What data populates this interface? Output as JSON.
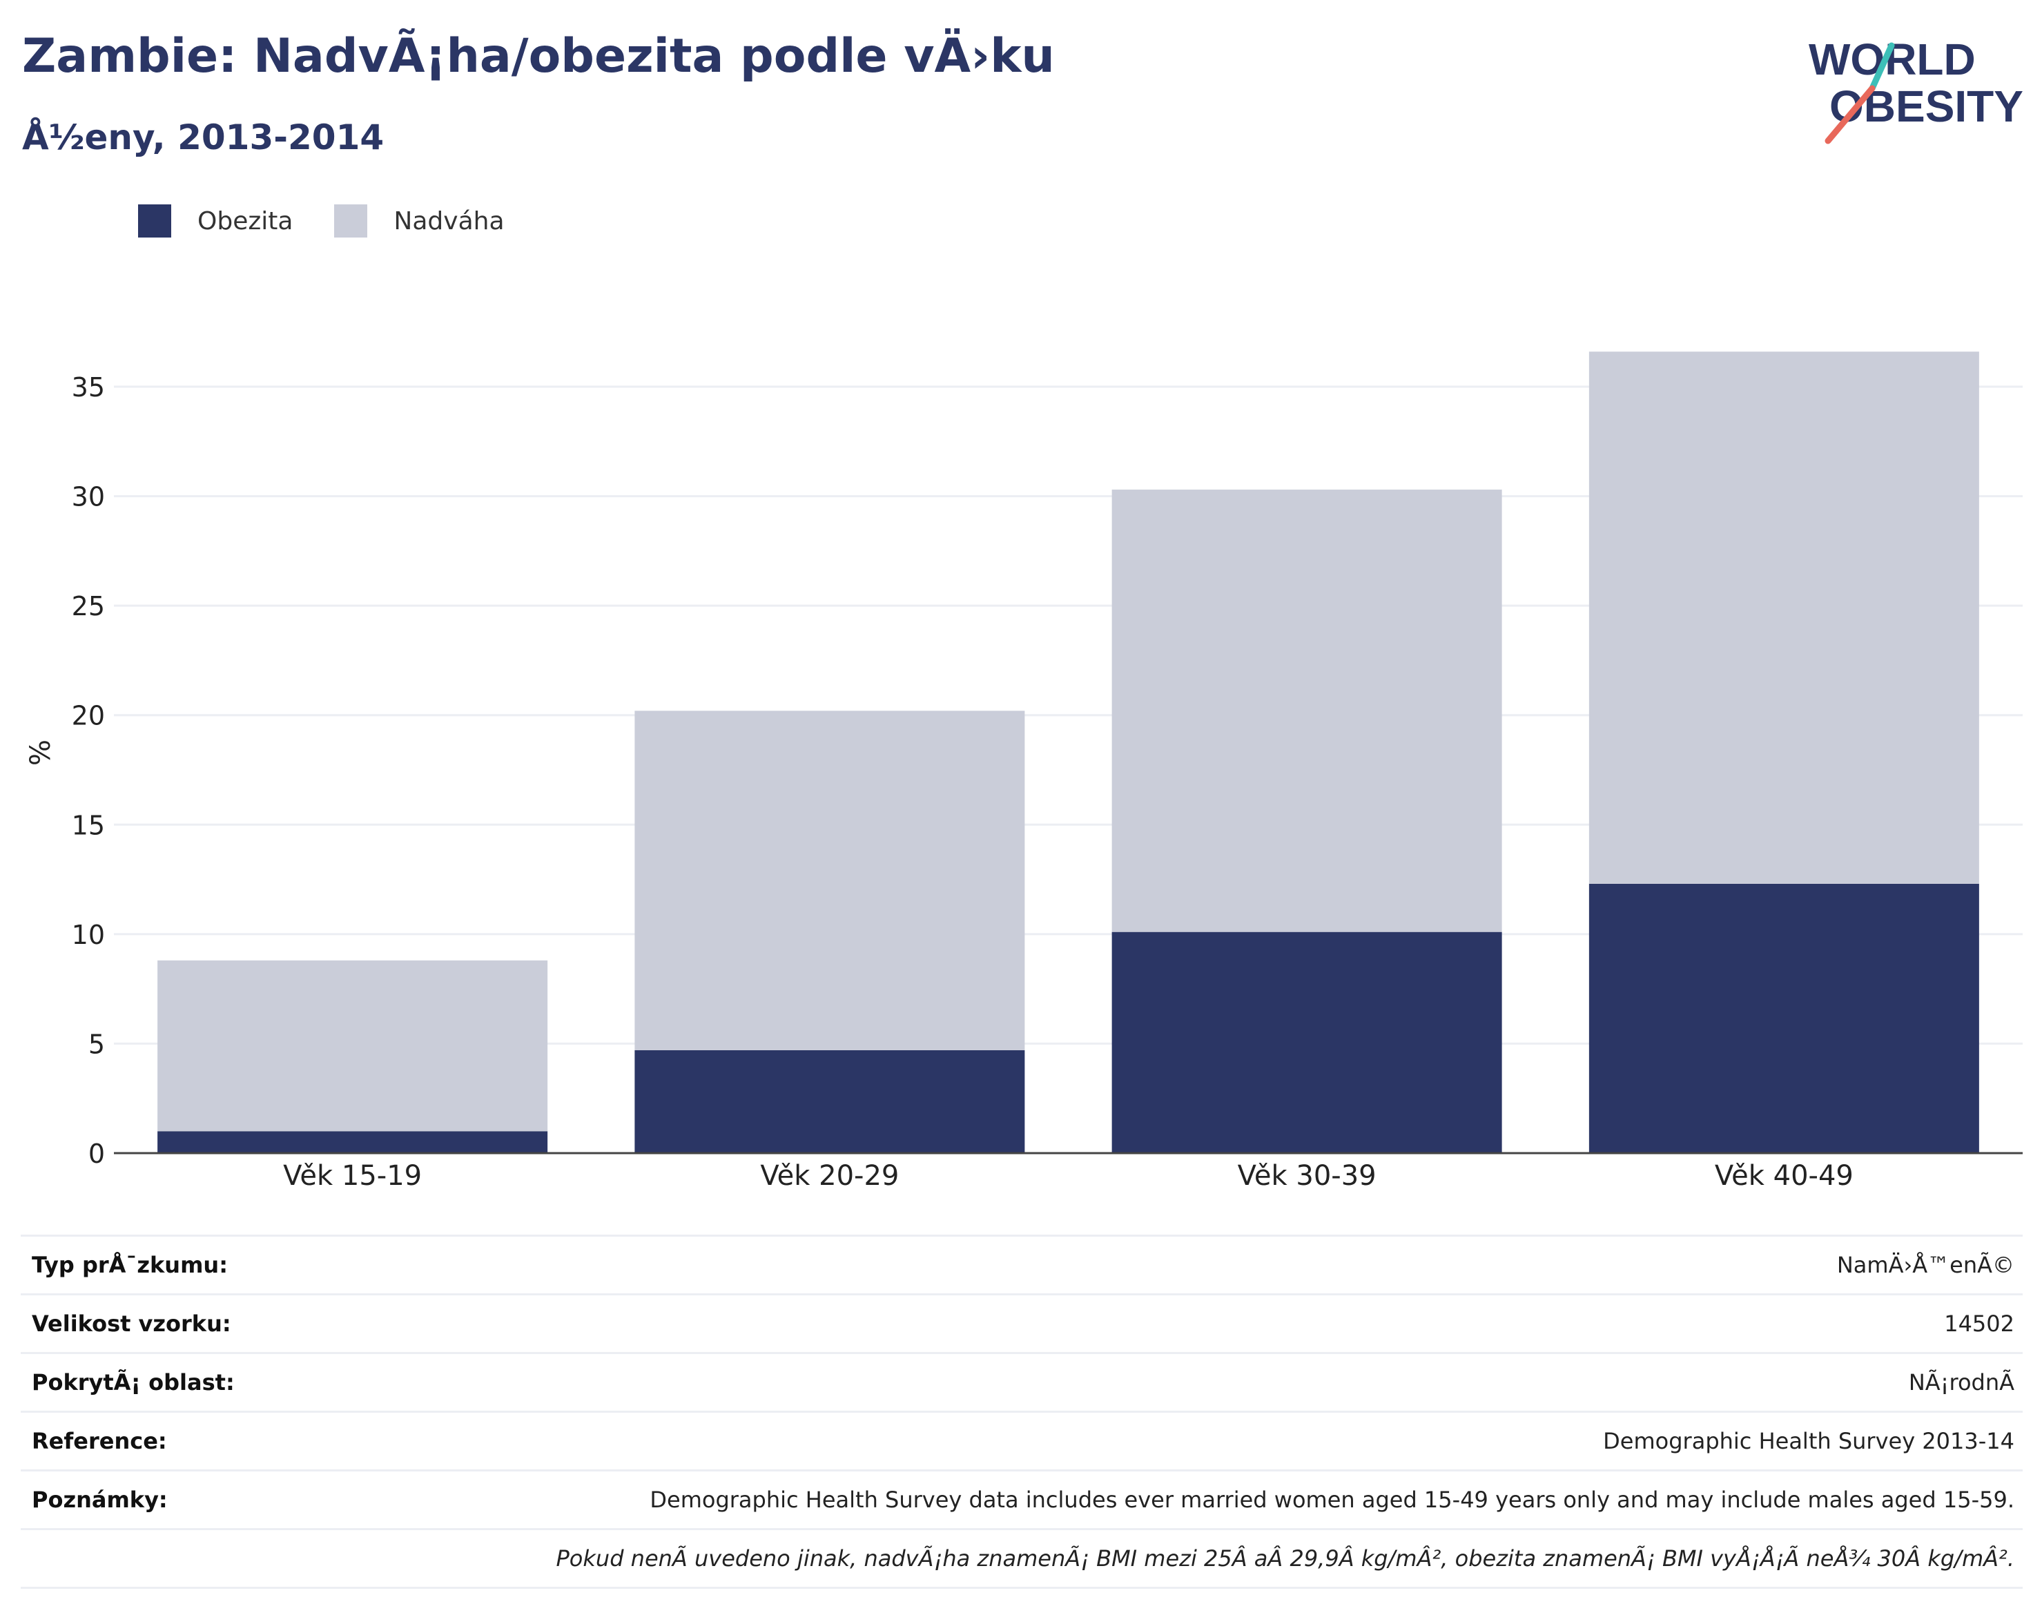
{
  "header": {
    "title": "Zambie: NadvÃ¡ha/obezita podle vÄ›ku",
    "subtitle": "Å½eny, 2013-2014"
  },
  "logo": {
    "line1": "WORLD",
    "line2": "OBESITY",
    "icon": "world-obesity-logo"
  },
  "colors": {
    "obesity": "#2b3665",
    "overweight": "#cacdd9",
    "text": "#2b3665",
    "accent_teal": "#3dbfb8",
    "accent_red": "#e8685a"
  },
  "chart_data": {
    "type": "bar",
    "stacked": true,
    "categories": [
      "Věk 15-19",
      "Věk 20-29",
      "Věk 30-39",
      "Věk 40-49"
    ],
    "series": [
      {
        "name": "Obezita",
        "values": [
          1.0,
          4.7,
          10.1,
          12.3
        ]
      },
      {
        "name": "Nadváha",
        "values": [
          7.8,
          15.5,
          20.2,
          24.3
        ]
      }
    ],
    "ylabel": "%",
    "ylim": [
      0,
      37
    ],
    "yticks": [
      0,
      5,
      10,
      15,
      20,
      25,
      30,
      35
    ],
    "grid": true,
    "legend": "top-left"
  },
  "info": [
    {
      "label": "Typ prÅ¯zkumu:",
      "value": "NamÄ›Å™enÃ©"
    },
    {
      "label": "Velikost vzorku:",
      "value": "14502"
    },
    {
      "label": "PokrytÃ¡ oblast:",
      "value": "NÃ¡rodnÃ"
    },
    {
      "label": "Reference:",
      "value": "Demographic Health Survey 2013-14"
    },
    {
      "label": "Poznámky:",
      "value": "Demographic Health Survey data includes ever married women aged 15-49 years only and may include males aged 15-59."
    }
  ],
  "footnote": "Pokud nenÃ uvedeno jinak, nadvÃ¡ha znamenÃ¡ BMI mezi 25Â aÂ 29,9Â kg/mÂ², obezita znamenÃ¡ BMI vyÅ¡Å¡Ã neÅ¾ 30Â kg/mÂ²."
}
